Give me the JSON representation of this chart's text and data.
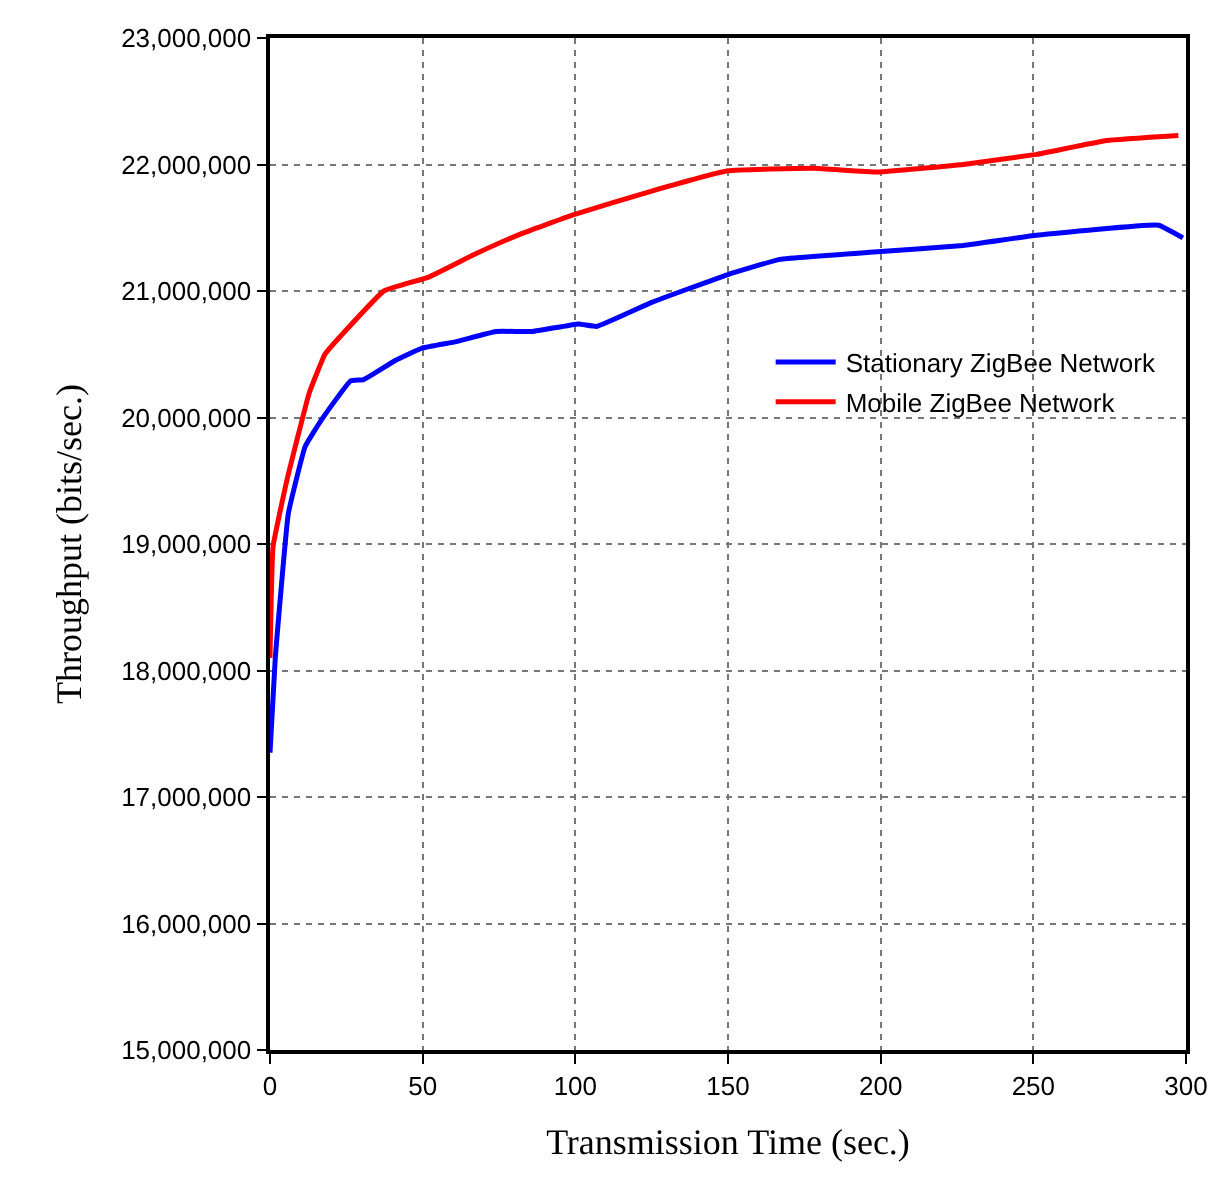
{
  "chart_data": {
    "type": "line",
    "xlabel": "Transmission Time (sec.)",
    "ylabel": "Throughput (bits/sec.)",
    "xlim": [
      0,
      300
    ],
    "xticks": [
      0,
      50,
      100,
      150,
      200,
      250,
      300
    ],
    "ylim": [
      15000000,
      23000000
    ],
    "yticks": [
      {
        "value": 15000000,
        "label": "15,000,000"
      },
      {
        "value": 16000000,
        "label": "16,000,000"
      },
      {
        "value": 17000000,
        "label": "17,000,000"
      },
      {
        "value": 18000000,
        "label": "18,000,000"
      },
      {
        "value": 19000000,
        "label": "19,000,000"
      },
      {
        "value": 20000000,
        "label": "20,000,000"
      },
      {
        "value": 21000000,
        "label": "21,000,000"
      },
      {
        "value": 22000000,
        "label": "22,000,000"
      },
      {
        "value": 23000000,
        "label": "23,000,000"
      }
    ],
    "grid": true,
    "legend": "right",
    "marker": "none",
    "line_style": "solid",
    "series": [
      {
        "name": "Stationary ZigBee Network",
        "color": "#0000ff",
        "x": [
          0,
          1.7,
          6,
          11.5,
          16.8,
          26.4,
          30.7,
          41,
          50,
          61,
          74,
          86,
          101,
          107,
          125,
          150,
          167,
          199,
          227,
          251,
          291,
          299
        ],
        "values": [
          17350000,
          18090000,
          19240000,
          19770000,
          19980000,
          20290000,
          20300000,
          20450000,
          20550000,
          20600000,
          20680000,
          20680000,
          20740000,
          20720000,
          20910000,
          21130000,
          21250000,
          21310000,
          21360000,
          21440000,
          21520000,
          21420000
        ]
      },
      {
        "name": "Mobile ZigBee Network",
        "color": "#ff0000",
        "x": [
          0,
          1,
          5.5,
          12.8,
          18,
          24.5,
          37.3,
          52,
          67,
          82,
          99,
          125,
          150,
          178,
          199,
          227,
          251,
          274,
          297.5
        ],
        "values": [
          18100000,
          18980000,
          19500000,
          20190000,
          20500000,
          20680000,
          21000000,
          21110000,
          21290000,
          21450000,
          21600000,
          21790000,
          21950000,
          21970000,
          21940000,
          22000000,
          22080000,
          22190000,
          22230000
        ]
      }
    ]
  }
}
